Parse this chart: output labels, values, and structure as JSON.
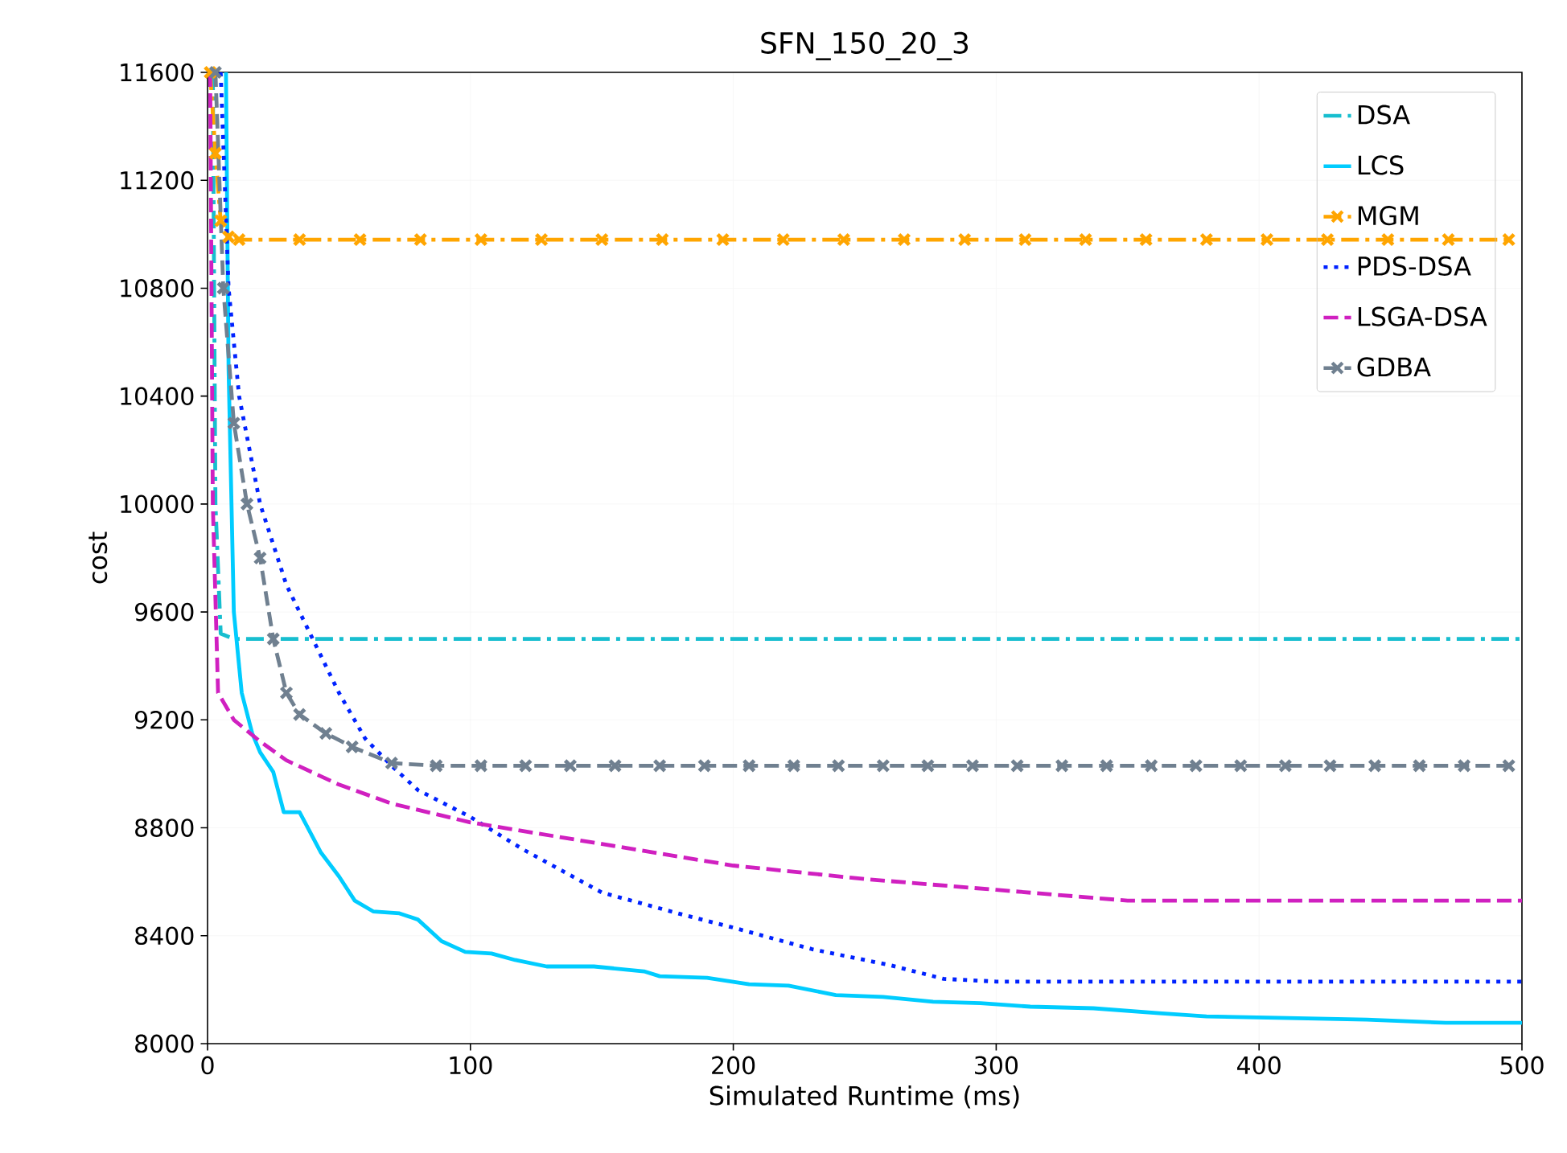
{
  "chart_data": {
    "type": "line",
    "title": "SFN_150_20_3",
    "xlabel": "Simulated Runtime (ms)",
    "ylabel": "cost",
    "xlim": [
      0,
      500
    ],
    "ylim": [
      8000,
      11600
    ],
    "xticks": [
      0,
      100,
      200,
      300,
      400,
      500
    ],
    "yticks": [
      8000,
      8400,
      8800,
      9200,
      9600,
      10000,
      10400,
      10800,
      11200,
      11600
    ],
    "grid": true,
    "legend": "top right",
    "series": [
      {
        "name": "DSA",
        "color": "#17becf",
        "line_style": "dashdot",
        "marker": "none",
        "x": [
          2,
          3,
          5,
          10,
          500
        ],
        "values": [
          11600,
          10000,
          9520,
          9500,
          9500
        ]
      },
      {
        "name": "LCS",
        "color": "#00ccff",
        "line_style": "solid",
        "marker": "none",
        "x": [
          7,
          8,
          10,
          13,
          17,
          20,
          25,
          29,
          35,
          43,
          50,
          56,
          63,
          73,
          80,
          89,
          98,
          108,
          117,
          129,
          147,
          166,
          172,
          190,
          206,
          221,
          239,
          257,
          276,
          294,
          313,
          337,
          362,
          380,
          411,
          441,
          471,
          500
        ],
        "values": [
          11600,
          10500,
          9600,
          9300,
          9150,
          9080,
          9007,
          8858,
          8858,
          8710,
          8620,
          8530,
          8490,
          8483,
          8460,
          8380,
          8340,
          8334,
          8310,
          8286,
          8286,
          8268,
          8250,
          8244,
          8220,
          8215,
          8180,
          8173,
          8155,
          8150,
          8137,
          8131,
          8113,
          8101,
          8095,
          8089,
          8077,
          8077
        ]
      },
      {
        "name": "MGM",
        "color": "#ffa500",
        "line_style": "dashdot",
        "marker": "cross",
        "x": [
          1,
          3,
          5,
          8,
          12,
          35,
          58,
          81,
          104,
          127,
          150,
          173,
          196,
          219,
          242,
          265,
          288,
          311,
          334,
          357,
          380,
          403,
          426,
          449,
          472,
          495
        ],
        "values": [
          11600,
          11300,
          11050,
          10990,
          10980,
          10980,
          10980,
          10980,
          10980,
          10980,
          10980,
          10980,
          10980,
          10980,
          10980,
          10980,
          10980,
          10980,
          10980,
          10980,
          10980,
          10980,
          10980,
          10980,
          10980,
          10980
        ]
      },
      {
        "name": "PDS-DSA",
        "color": "#0022ff",
        "line_style": "dotted",
        "marker": "none",
        "x": [
          5,
          8,
          12,
          20,
          30,
          40,
          50,
          60,
          70,
          80,
          100,
          120,
          150,
          180,
          200,
          230,
          260,
          280,
          300,
          500
        ],
        "values": [
          11600,
          10800,
          10400,
          10000,
          9700,
          9500,
          9300,
          9130,
          9030,
          8940,
          8840,
          8720,
          8560,
          8480,
          8430,
          8350,
          8290,
          8240,
          8230,
          8230
        ]
      },
      {
        "name": "LSGA-DSA",
        "color": "#d020c0",
        "line_style": "dashed",
        "marker": "none",
        "x": [
          1,
          2,
          4,
          10,
          20,
          30,
          50,
          70,
          100,
          150,
          200,
          250,
          300,
          350,
          500
        ],
        "values": [
          11600,
          10000,
          9300,
          9200,
          9120,
          9050,
          8960,
          8890,
          8820,
          8740,
          8660,
          8610,
          8570,
          8530,
          8530
        ]
      },
      {
        "name": "GDBA",
        "color": "#708090",
        "line_style": "dashed",
        "marker": "cross",
        "x": [
          3,
          6,
          10,
          15,
          20,
          25,
          30,
          35,
          45,
          55,
          70,
          87,
          104,
          121,
          138,
          155,
          172,
          189,
          206,
          223,
          240,
          257,
          274,
          291,
          308,
          325,
          342,
          359,
          376,
          393,
          410,
          427,
          444,
          461,
          478,
          495
        ],
        "values": [
          11600,
          10800,
          10300,
          10000,
          9800,
          9500,
          9300,
          9220,
          9150,
          9100,
          9040,
          9030,
          9030,
          9030,
          9030,
          9030,
          9030,
          9030,
          9030,
          9030,
          9030,
          9030,
          9030,
          9030,
          9030,
          9030,
          9030,
          9030,
          9030,
          9030,
          9030,
          9030,
          9030,
          9030,
          9030,
          9030
        ]
      }
    ]
  }
}
